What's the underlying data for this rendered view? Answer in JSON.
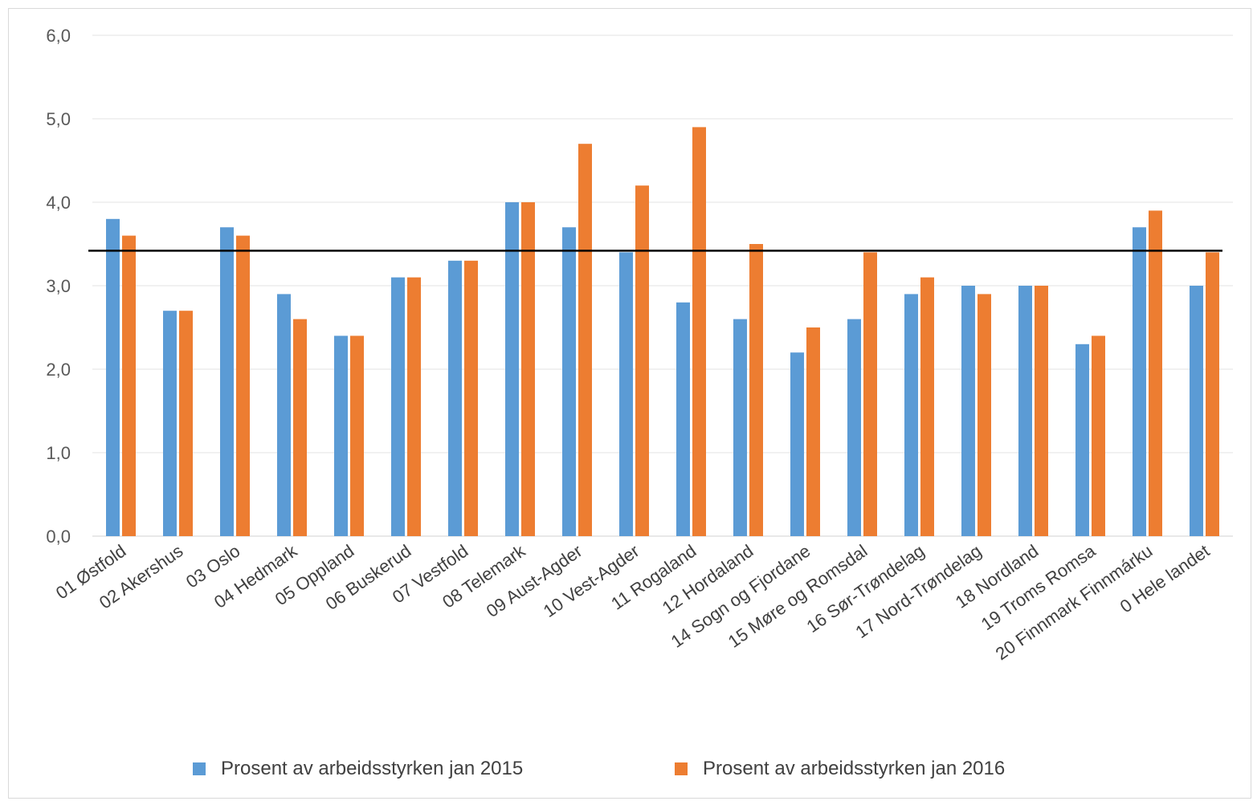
{
  "chart_data": {
    "type": "bar",
    "categories": [
      "01 Østfold",
      "02 Akershus",
      "03 Oslo",
      "04 Hedmark",
      "05 Oppland",
      "06 Buskerud",
      "07 Vestfold",
      "08 Telemark",
      "09 Aust-Agder",
      "10 Vest-Agder",
      "11 Rogaland",
      "12 Hordaland",
      "14 Sogn og Fjordane",
      "15 Møre og Romsdal",
      "16 Sør-Trøndelag",
      "17 Nord-Trøndelag",
      "18 Nordland",
      "19 Troms Romsa",
      "20 Finnmark Finnmárku",
      "0 Hele landet"
    ],
    "series": [
      {
        "name": "Prosent av arbeidsstyrken jan 2015",
        "color": "#5b9bd5",
        "values": [
          3.8,
          2.7,
          3.7,
          2.9,
          2.4,
          3.1,
          3.3,
          4.0,
          3.7,
          3.4,
          2.8,
          2.6,
          2.2,
          2.6,
          2.9,
          3.0,
          3.0,
          2.3,
          3.7,
          3.0
        ]
      },
      {
        "name": "Prosent av arbeidsstyrken jan 2016",
        "color": "#ed7d31",
        "values": [
          3.6,
          2.7,
          3.6,
          2.6,
          2.4,
          3.1,
          3.3,
          4.0,
          4.7,
          4.2,
          4.9,
          3.5,
          2.5,
          3.4,
          3.1,
          2.9,
          3.0,
          2.4,
          3.9,
          3.4
        ]
      }
    ],
    "reference_line": {
      "value": 3.42,
      "color": "#000000"
    },
    "yticks": [
      "0,0",
      "1,0",
      "2,0",
      "3,0",
      "4,0",
      "5,0",
      "6,0"
    ],
    "ylim": [
      0,
      6
    ],
    "grid": true,
    "legend_position": "bottom",
    "title": "",
    "xlabel": "",
    "ylabel": ""
  }
}
